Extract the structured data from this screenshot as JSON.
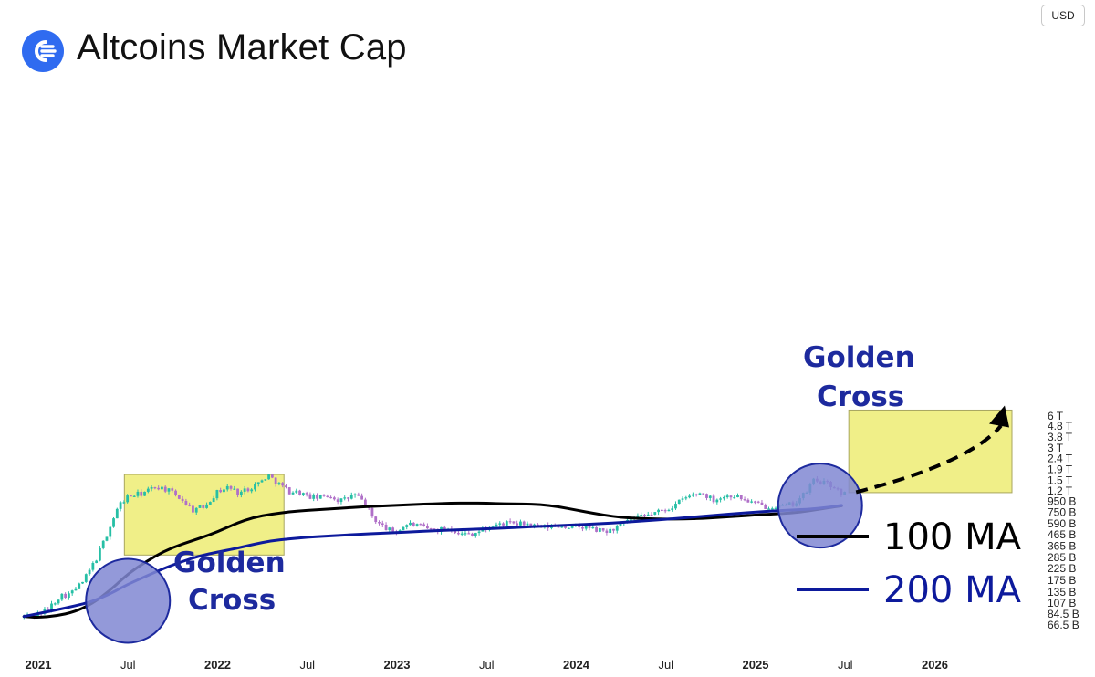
{
  "title": "Altcoins Market Cap",
  "currency": "USD",
  "colors": {
    "candle_up": "#26bfa5",
    "candle_down": "#b070c8",
    "ma100": "#000000",
    "ma200": "#0d1a9c",
    "highlight_box": "#f0ef88",
    "circle_fill": "#8087d2",
    "circle_stroke": "#1d2a9e",
    "annotation_text": "#1d2a9e"
  },
  "chart_data": {
    "type": "line",
    "yscale": "log",
    "ylim": [
      61000000000,
      7200000000000
    ],
    "xlim": [
      2020.92,
      2026.5
    ],
    "y_tick_labels": [
      {
        "label": "6 T",
        "value": 6000000000000
      },
      {
        "label": "4.8 T",
        "value": 4800000000000
      },
      {
        "label": "3.8 T",
        "value": 3800000000000
      },
      {
        "label": "3 T",
        "value": 3000000000000
      },
      {
        "label": "2.4 T",
        "value": 2400000000000
      },
      {
        "label": "1.9 T",
        "value": 1900000000000
      },
      {
        "label": "1.5 T",
        "value": 1500000000000
      },
      {
        "label": "1.2 T",
        "value": 1200000000000
      },
      {
        "label": "950 B",
        "value": 950000000000
      },
      {
        "label": "750 B",
        "value": 750000000000
      },
      {
        "label": "590 B",
        "value": 590000000000
      },
      {
        "label": "465 B",
        "value": 465000000000
      },
      {
        "label": "365 B",
        "value": 365000000000
      },
      {
        "label": "285 B",
        "value": 285000000000
      },
      {
        "label": "225 B",
        "value": 225000000000
      },
      {
        "label": "175 B",
        "value": 175000000000
      },
      {
        "label": "135 B",
        "value": 135000000000
      },
      {
        "label": "107 B",
        "value": 107000000000
      },
      {
        "label": "84.5 B",
        "value": 84500000000
      },
      {
        "label": "66.5 B",
        "value": 66500000000
      }
    ],
    "x_tick_labels": [
      {
        "label": "2021",
        "value": 2021.0,
        "year": true
      },
      {
        "label": "Jul",
        "value": 2021.5,
        "year": false
      },
      {
        "label": "2022",
        "value": 2022.0,
        "year": true
      },
      {
        "label": "Jul",
        "value": 2022.5,
        "year": false
      },
      {
        "label": "2023",
        "value": 2023.0,
        "year": true
      },
      {
        "label": "Jul",
        "value": 2023.5,
        "year": false
      },
      {
        "label": "2024",
        "value": 2024.0,
        "year": true
      },
      {
        "label": "Jul",
        "value": 2024.5,
        "year": false
      },
      {
        "label": "2025",
        "value": 2025.0,
        "year": true
      },
      {
        "label": "Jul",
        "value": 2025.5,
        "year": false
      },
      {
        "label": "2026",
        "value": 2026.0,
        "year": true
      }
    ],
    "price_path": [
      [
        2020.92,
        80
      ],
      [
        2021.0,
        85
      ],
      [
        2021.05,
        92
      ],
      [
        2021.12,
        125
      ],
      [
        2021.18,
        130
      ],
      [
        2021.25,
        170
      ],
      [
        2021.32,
        270
      ],
      [
        2021.37,
        420
      ],
      [
        2021.45,
        880
      ],
      [
        2021.5,
        1060
      ],
      [
        2021.58,
        1130
      ],
      [
        2021.66,
        1320
      ],
      [
        2021.72,
        1220
      ],
      [
        2021.8,
        1000
      ],
      [
        2021.86,
        790
      ],
      [
        2021.92,
        850
      ],
      [
        2022.0,
        1180
      ],
      [
        2022.06,
        1300
      ],
      [
        2022.12,
        1140
      ],
      [
        2022.18,
        1280
      ],
      [
        2022.24,
        1450
      ],
      [
        2022.28,
        1680
      ],
      [
        2022.33,
        1430
      ],
      [
        2022.4,
        1180
      ],
      [
        2022.46,
        1160
      ],
      [
        2022.5,
        1060
      ],
      [
        2022.56,
        1030
      ],
      [
        2022.62,
        1090
      ],
      [
        2022.68,
        970
      ],
      [
        2022.72,
        1000
      ],
      [
        2022.76,
        1110
      ],
      [
        2022.82,
        930
      ],
      [
        2022.86,
        690
      ],
      [
        2022.9,
        590
      ],
      [
        2022.96,
        510
      ],
      [
        2023.0,
        500
      ],
      [
        2023.06,
        590
      ],
      [
        2023.12,
        560
      ],
      [
        2023.18,
        520
      ],
      [
        2023.24,
        520
      ],
      [
        2023.3,
        540
      ],
      [
        2023.36,
        470
      ],
      [
        2023.42,
        480
      ],
      [
        2023.48,
        510
      ],
      [
        2023.54,
        560
      ],
      [
        2023.6,
        600
      ],
      [
        2023.66,
        580
      ],
      [
        2023.72,
        590
      ],
      [
        2023.8,
        540
      ],
      [
        2023.9,
        560
      ],
      [
        2024.0,
        550
      ],
      [
        2024.06,
        540
      ],
      [
        2024.12,
        510
      ],
      [
        2024.18,
        500
      ],
      [
        2024.24,
        560
      ],
      [
        2024.3,
        640
      ],
      [
        2024.36,
        680
      ],
      [
        2024.42,
        730
      ],
      [
        2024.48,
        780
      ],
      [
        2024.54,
        860
      ],
      [
        2024.6,
        1010
      ],
      [
        2024.66,
        1110
      ],
      [
        2024.7,
        1150
      ],
      [
        2024.76,
        990
      ],
      [
        2024.82,
        1050
      ],
      [
        2024.88,
        1090
      ],
      [
        2024.94,
        980
      ],
      [
        2025.0,
        910
      ],
      [
        2025.04,
        850
      ],
      [
        2025.1,
        870
      ],
      [
        2025.16,
        850
      ],
      [
        2025.22,
        920
      ],
      [
        2025.28,
        1140
      ],
      [
        2025.32,
        1510
      ],
      [
        2025.36,
        1450
      ],
      [
        2025.4,
        1380
      ],
      [
        2025.44,
        1310
      ],
      [
        2025.46,
        1200
      ],
      [
        2025.48,
        1050
      ],
      [
        2025.5,
        1130
      ]
    ],
    "series": [
      {
        "name": "100 MA",
        "values": [
          [
            2020.92,
            80
          ],
          [
            2021.0,
            78
          ],
          [
            2021.1,
            81
          ],
          [
            2021.2,
            88
          ],
          [
            2021.3,
            105
          ],
          [
            2021.4,
            140
          ],
          [
            2021.5,
            200
          ],
          [
            2021.6,
            260
          ],
          [
            2021.7,
            325
          ],
          [
            2021.8,
            380
          ],
          [
            2021.9,
            430
          ],
          [
            2022.0,
            495
          ],
          [
            2022.1,
            590
          ],
          [
            2022.2,
            675
          ],
          [
            2022.3,
            725
          ],
          [
            2022.4,
            760
          ],
          [
            2022.5,
            785
          ],
          [
            2022.6,
            805
          ],
          [
            2022.7,
            825
          ],
          [
            2022.8,
            845
          ],
          [
            2022.9,
            860
          ],
          [
            2023.0,
            875
          ],
          [
            2023.1,
            890
          ],
          [
            2023.2,
            905
          ],
          [
            2023.3,
            915
          ],
          [
            2023.4,
            920
          ],
          [
            2023.5,
            915
          ],
          [
            2023.6,
            905
          ],
          [
            2023.7,
            900
          ],
          [
            2023.8,
            890
          ],
          [
            2023.9,
            850
          ],
          [
            2024.0,
            790
          ],
          [
            2024.1,
            735
          ],
          [
            2024.2,
            690
          ],
          [
            2024.3,
            665
          ],
          [
            2024.4,
            655
          ],
          [
            2024.5,
            650
          ],
          [
            2024.6,
            652
          ],
          [
            2024.7,
            660
          ],
          [
            2024.8,
            675
          ],
          [
            2024.9,
            692
          ],
          [
            2025.0,
            710
          ],
          [
            2025.1,
            725
          ],
          [
            2025.2,
            742
          ],
          [
            2025.3,
            775
          ],
          [
            2025.4,
            830
          ],
          [
            2025.48,
            865
          ]
        ]
      },
      {
        "name": "200 MA",
        "values": [
          [
            2020.92,
            80
          ],
          [
            2021.0,
            85
          ],
          [
            2021.1,
            92
          ],
          [
            2021.2,
            100
          ],
          [
            2021.3,
            110
          ],
          [
            2021.4,
            130
          ],
          [
            2021.5,
            160
          ],
          [
            2021.6,
            190
          ],
          [
            2021.7,
            225
          ],
          [
            2021.8,
            260
          ],
          [
            2021.9,
            295
          ],
          [
            2022.0,
            320
          ],
          [
            2022.1,
            345
          ],
          [
            2022.2,
            378
          ],
          [
            2022.3,
            408
          ],
          [
            2022.4,
            425
          ],
          [
            2022.5,
            440
          ],
          [
            2022.6,
            450
          ],
          [
            2022.7,
            460
          ],
          [
            2022.8,
            470
          ],
          [
            2022.9,
            478
          ],
          [
            2023.0,
            487
          ],
          [
            2023.1,
            496
          ],
          [
            2023.2,
            505
          ],
          [
            2023.3,
            513
          ],
          [
            2023.4,
            521
          ],
          [
            2023.5,
            529
          ],
          [
            2023.6,
            537
          ],
          [
            2023.7,
            547
          ],
          [
            2023.8,
            557
          ],
          [
            2023.9,
            565
          ],
          [
            2024.0,
            575
          ],
          [
            2024.1,
            585
          ],
          [
            2024.2,
            597
          ],
          [
            2024.3,
            613
          ],
          [
            2024.4,
            630
          ],
          [
            2024.5,
            648
          ],
          [
            2024.6,
            668
          ],
          [
            2024.7,
            690
          ],
          [
            2024.8,
            712
          ],
          [
            2024.9,
            735
          ],
          [
            2025.0,
            755
          ],
          [
            2025.1,
            775
          ],
          [
            2025.2,
            790
          ],
          [
            2025.3,
            805
          ],
          [
            2025.4,
            835
          ],
          [
            2025.48,
            875
          ]
        ]
      }
    ],
    "highlight_boxes": [
      {
        "x0": 2021.48,
        "x1": 2022.37,
        "y_low": 300,
        "y_high": 1700
      },
      {
        "x0": 2025.52,
        "x1": 2026.43,
        "y_low": 1150,
        "y_high": 6800
      }
    ],
    "forecast_arrow": {
      "from": [
        2025.52,
        1160
      ],
      "via": [
        2026.2,
        2200
      ],
      "to": [
        2026.42,
        6400
      ]
    },
    "cross_points": [
      {
        "label_line1": "Golden",
        "label_line2": "Cross",
        "x": 2021.5,
        "y": 112
      },
      {
        "label_line1": "Golden",
        "label_line2": "Cross",
        "x": 2025.36,
        "y": 870
      }
    ],
    "legend": {
      "placement": "bottom-right"
    }
  }
}
